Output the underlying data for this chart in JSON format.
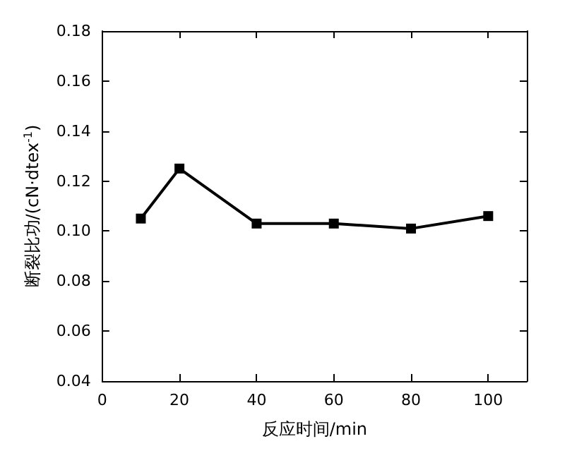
{
  "chart_data": {
    "type": "line",
    "xlabel": "反应时间/min",
    "ylabel": "断裂比功/(cN·dtex$^{-1}$)",
    "x": [
      10,
      20,
      40,
      60,
      80,
      100
    ],
    "series": [
      {
        "color": "#000000",
        "values": [
          0.105,
          0.125,
          0.103,
          0.103,
          0.101,
          0.106
        ]
      }
    ],
    "xlim": [
      0,
      110
    ],
    "xticks": [
      0,
      20,
      40,
      60,
      80,
      100
    ],
    "ylim": [
      0.04,
      0.18
    ],
    "yticks": [
      0.04,
      0.06,
      0.08,
      {
        "value": 0.1,
        "label": "0.10"
      },
      0.12,
      0.14,
      0.16,
      0.18
    ],
    "marker": "square",
    "line_style": "solid",
    "grid": false
  }
}
